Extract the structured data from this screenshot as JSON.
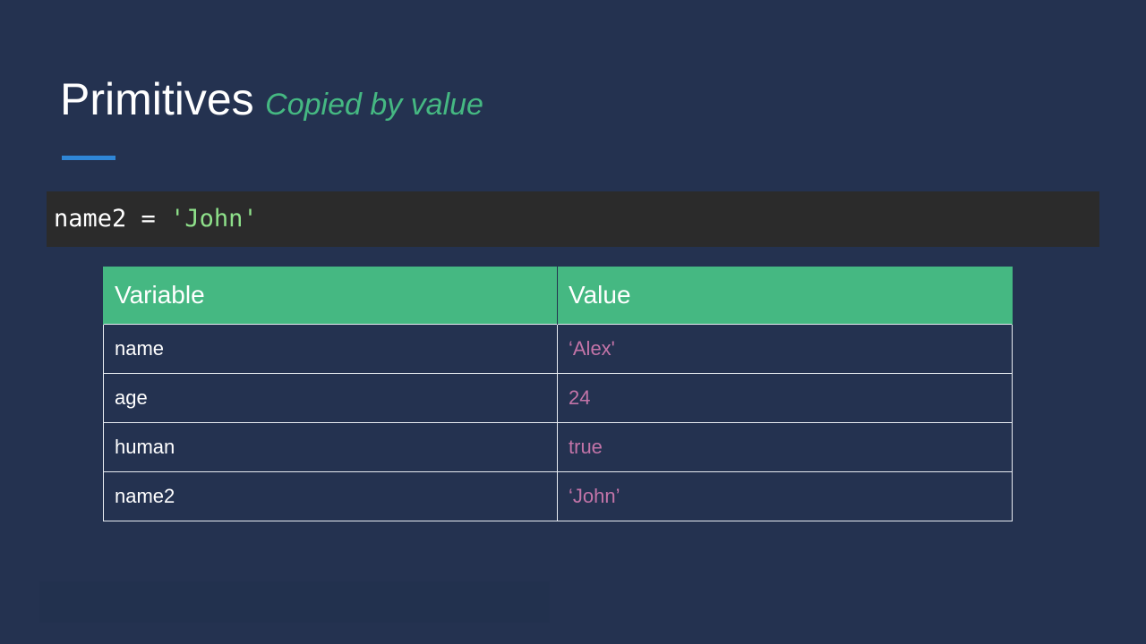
{
  "slide": {
    "title": "Primitives",
    "subtitle": "Copied by value"
  },
  "code": {
    "identifier": "name2",
    "operator": "=",
    "string_literal": "'John'"
  },
  "table": {
    "headers": [
      "Variable",
      "Value"
    ],
    "rows": [
      {
        "variable": "name",
        "value": "‘Alex'"
      },
      {
        "variable": "age",
        "value": "24"
      },
      {
        "variable": "human",
        "value": "true"
      },
      {
        "variable": "name2",
        "value": "‘John’"
      }
    ]
  },
  "colors": {
    "background": "#243250",
    "accent_green": "#45b882",
    "accent_blue": "#2f86d6",
    "code_background": "#2b2b2b",
    "value_pink": "#c374a8",
    "string_green": "#8ee08a"
  }
}
